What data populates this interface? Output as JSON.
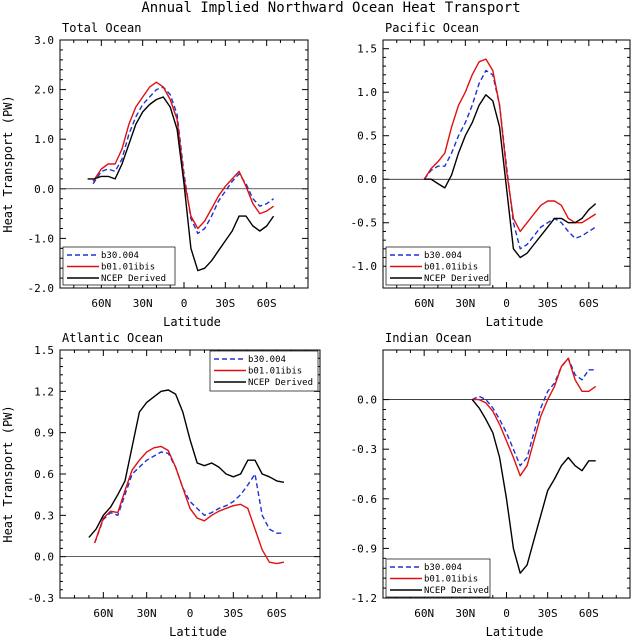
{
  "figure_title": "Annual Implied Northward Ocean Heat Transport",
  "colors": {
    "b30.004": "#1a33d6",
    "b01.01ibis": "#e01010",
    "NCEP Derived": "#000000"
  },
  "chart_data": [
    {
      "type": "line",
      "title": "Total Ocean",
      "xlabel": "Latitude",
      "ylabel": "Heat Transport (PW)",
      "xlim": [
        90,
        -90
      ],
      "ylim": [
        -2.0,
        3.0
      ],
      "yticks": [
        "-2.0",
        "-1.0",
        "0.0",
        "1.0",
        "2.0",
        "3.0"
      ],
      "xticks": [
        "60N",
        "30N",
        "0",
        "30S",
        "60S"
      ],
      "grid": false,
      "legend_position": "bottom-left",
      "series": [
        {
          "name": "b30.004",
          "style": "dashed",
          "x": [
            66,
            60,
            55,
            50,
            45,
            40,
            35,
            30,
            25,
            20,
            15,
            10,
            5,
            0,
            -5,
            -10,
            -15,
            -20,
            -25,
            -30,
            -35,
            -40,
            -45,
            -50,
            -55,
            -60,
            -65
          ],
          "y": [
            0.1,
            0.35,
            0.4,
            0.35,
            0.6,
            1.1,
            1.45,
            1.7,
            1.85,
            2.0,
            2.05,
            1.9,
            1.5,
            0.3,
            -0.6,
            -0.9,
            -0.8,
            -0.55,
            -0.25,
            -0.05,
            0.15,
            0.3,
            0.1,
            -0.2,
            -0.35,
            -0.3,
            -0.2
          ]
        },
        {
          "name": "b01.01ibis",
          "style": "solid",
          "x": [
            66,
            60,
            55,
            50,
            45,
            40,
            35,
            30,
            25,
            20,
            15,
            10,
            5,
            0,
            -5,
            -10,
            -15,
            -20,
            -25,
            -30,
            -35,
            -40,
            -45,
            -50,
            -55,
            -60,
            -65
          ],
          "y": [
            0.15,
            0.4,
            0.5,
            0.5,
            0.8,
            1.3,
            1.65,
            1.85,
            2.05,
            2.15,
            2.05,
            1.8,
            1.4,
            0.2,
            -0.55,
            -0.8,
            -0.65,
            -0.4,
            -0.15,
            0.05,
            0.2,
            0.35,
            0.05,
            -0.3,
            -0.5,
            -0.45,
            -0.35
          ]
        },
        {
          "name": "NCEP Derived",
          "style": "solid",
          "x": [
            70,
            65,
            60,
            55,
            50,
            45,
            40,
            35,
            30,
            25,
            20,
            15,
            10,
            5,
            0,
            -5,
            -10,
            -15,
            -20,
            -25,
            -30,
            -35,
            -40,
            -45,
            -50,
            -55,
            -60,
            -65
          ],
          "y": [
            0.2,
            0.2,
            0.25,
            0.25,
            0.2,
            0.5,
            0.9,
            1.3,
            1.55,
            1.7,
            1.8,
            1.85,
            1.65,
            1.2,
            0.1,
            -1.2,
            -1.65,
            -1.6,
            -1.45,
            -1.25,
            -1.05,
            -0.85,
            -0.55,
            -0.55,
            -0.75,
            -0.85,
            -0.75,
            -0.55
          ]
        }
      ]
    },
    {
      "type": "line",
      "title": "Pacific Ocean",
      "xlabel": "Latitude",
      "ylabel": "",
      "xlim": [
        90,
        -90
      ],
      "ylim": [
        -1.25,
        1.6
      ],
      "yticks": [
        "-1.0",
        "-0.5",
        "0.0",
        "0.5",
        "1.0",
        "1.5"
      ],
      "xticks": [
        "60N",
        "30N",
        "0",
        "30S",
        "60S"
      ],
      "grid": false,
      "legend_position": "bottom-left",
      "series": [
        {
          "name": "b30.004",
          "style": "dashed",
          "x": [
            60,
            55,
            50,
            45,
            40,
            35,
            30,
            25,
            20,
            15,
            10,
            5,
            0,
            -5,
            -10,
            -15,
            -20,
            -25,
            -30,
            -35,
            -40,
            -45,
            -50,
            -55,
            -60,
            -65
          ],
          "y": [
            0.0,
            0.1,
            0.15,
            0.15,
            0.3,
            0.5,
            0.65,
            0.85,
            1.1,
            1.25,
            1.2,
            0.85,
            0.15,
            -0.5,
            -0.8,
            -0.75,
            -0.65,
            -0.55,
            -0.5,
            -0.45,
            -0.5,
            -0.6,
            -0.68,
            -0.65,
            -0.6,
            -0.55
          ]
        },
        {
          "name": "b01.01ibis",
          "style": "solid",
          "x": [
            60,
            55,
            50,
            45,
            40,
            35,
            30,
            25,
            20,
            15,
            10,
            5,
            0,
            -5,
            -10,
            -15,
            -20,
            -25,
            -30,
            -35,
            -40,
            -45,
            -50,
            -55,
            -60,
            -65
          ],
          "y": [
            0.0,
            0.12,
            0.2,
            0.3,
            0.6,
            0.85,
            1.0,
            1.2,
            1.35,
            1.38,
            1.25,
            0.85,
            0.1,
            -0.45,
            -0.6,
            -0.5,
            -0.4,
            -0.3,
            -0.25,
            -0.25,
            -0.3,
            -0.45,
            -0.5,
            -0.5,
            -0.45,
            -0.4
          ]
        },
        {
          "name": "NCEP Derived",
          "style": "solid",
          "x": [
            60,
            55,
            50,
            45,
            40,
            35,
            30,
            25,
            20,
            15,
            10,
            5,
            0,
            -5,
            -10,
            -15,
            -20,
            -25,
            -30,
            -35,
            -40,
            -45,
            -50,
            -55,
            -60,
            -65
          ],
          "y": [
            0.0,
            0.0,
            -0.05,
            -0.1,
            0.05,
            0.3,
            0.5,
            0.65,
            0.85,
            0.97,
            0.9,
            0.6,
            -0.1,
            -0.8,
            -0.9,
            -0.85,
            -0.75,
            -0.65,
            -0.55,
            -0.45,
            -0.45,
            -0.5,
            -0.5,
            -0.45,
            -0.35,
            -0.28
          ]
        }
      ]
    },
    {
      "type": "line",
      "title": "Atlantic Ocean",
      "xlabel": "Latitude",
      "ylabel": "Heat Transport (PW)",
      "xlim": [
        90,
        -90
      ],
      "ylim": [
        -0.3,
        1.5
      ],
      "yticks": [
        "-0.3",
        "0.0",
        "0.3",
        "0.6",
        "0.9",
        "1.2",
        "1.5"
      ],
      "xticks": [
        "60N",
        "30N",
        "0",
        "30S",
        "60S"
      ],
      "grid": false,
      "legend_position": "top-right",
      "series": [
        {
          "name": "b30.004",
          "style": "dashed",
          "x": [
            66,
            60,
            55,
            50,
            45,
            40,
            35,
            30,
            25,
            20,
            15,
            10,
            5,
            0,
            -5,
            -10,
            -15,
            -20,
            -25,
            -30,
            -35,
            -40,
            -45,
            -50,
            -55,
            -60,
            -65
          ],
          "y": [
            0.1,
            0.27,
            0.32,
            0.3,
            0.45,
            0.6,
            0.65,
            0.7,
            0.73,
            0.76,
            0.75,
            0.65,
            0.5,
            0.4,
            0.35,
            0.3,
            0.32,
            0.35,
            0.37,
            0.4,
            0.45,
            0.52,
            0.6,
            0.3,
            0.2,
            0.17,
            0.17
          ]
        },
        {
          "name": "b01.01ibis",
          "style": "solid",
          "x": [
            66,
            60,
            55,
            50,
            45,
            40,
            35,
            30,
            25,
            20,
            15,
            10,
            5,
            0,
            -5,
            -10,
            -15,
            -20,
            -25,
            -30,
            -35,
            -40,
            -45,
            -50,
            -55,
            -60,
            -65
          ],
          "y": [
            0.1,
            0.28,
            0.33,
            0.32,
            0.48,
            0.63,
            0.7,
            0.76,
            0.79,
            0.8,
            0.77,
            0.65,
            0.5,
            0.35,
            0.28,
            0.26,
            0.3,
            0.33,
            0.35,
            0.37,
            0.38,
            0.35,
            0.2,
            0.05,
            -0.04,
            -0.05,
            -0.04
          ]
        },
        {
          "name": "NCEP Derived",
          "style": "solid",
          "x": [
            70,
            65,
            60,
            55,
            50,
            45,
            40,
            35,
            30,
            25,
            20,
            15,
            10,
            5,
            0,
            -5,
            -10,
            -15,
            -20,
            -25,
            -30,
            -35,
            -40,
            -45,
            -50,
            -55,
            -60,
            -65
          ],
          "y": [
            0.14,
            0.2,
            0.3,
            0.36,
            0.45,
            0.55,
            0.8,
            1.05,
            1.12,
            1.16,
            1.2,
            1.21,
            1.18,
            1.05,
            0.85,
            0.68,
            0.66,
            0.68,
            0.65,
            0.6,
            0.58,
            0.6,
            0.7,
            0.7,
            0.6,
            0.58,
            0.55,
            0.54
          ]
        }
      ]
    },
    {
      "type": "line",
      "title": "Indian Ocean",
      "xlabel": "Latitude",
      "ylabel": "",
      "xlim": [
        90,
        -90
      ],
      "ylim": [
        -1.2,
        0.3
      ],
      "yticks": [
        "-1.2",
        "-0.9",
        "-0.6",
        "-0.3",
        "0.0"
      ],
      "xticks": [
        "60N",
        "30N",
        "0",
        "30S",
        "60S"
      ],
      "grid": false,
      "legend_position": "bottom-left",
      "series": [
        {
          "name": "b30.004",
          "style": "dashed",
          "x": [
            25,
            20,
            15,
            10,
            5,
            0,
            -5,
            -10,
            -15,
            -20,
            -25,
            -30,
            -35,
            -40,
            -45,
            -50,
            -55,
            -60,
            -65
          ],
          "y": [
            0.0,
            0.02,
            0.0,
            -0.05,
            -0.12,
            -0.2,
            -0.3,
            -0.4,
            -0.35,
            -0.2,
            -0.05,
            0.05,
            0.1,
            0.2,
            0.25,
            0.15,
            0.12,
            0.18,
            0.18
          ]
        },
        {
          "name": "b01.01ibis",
          "style": "solid",
          "x": [
            25,
            20,
            15,
            10,
            5,
            0,
            -5,
            -10,
            -15,
            -20,
            -25,
            -30,
            -35,
            -40,
            -45,
            -50,
            -55,
            -60,
            -65
          ],
          "y": [
            0.0,
            0.0,
            -0.02,
            -0.07,
            -0.15,
            -0.25,
            -0.35,
            -0.46,
            -0.4,
            -0.25,
            -0.1,
            0.0,
            0.08,
            0.2,
            0.25,
            0.12,
            0.05,
            0.05,
            0.08
          ]
        },
        {
          "name": "NCEP Derived",
          "style": "solid",
          "x": [
            25,
            20,
            15,
            10,
            5,
            0,
            -5,
            -10,
            -15,
            -20,
            -25,
            -30,
            -35,
            -40,
            -45,
            -50,
            -55,
            -60,
            -65
          ],
          "y": [
            0.0,
            -0.05,
            -0.12,
            -0.2,
            -0.35,
            -0.6,
            -0.9,
            -1.05,
            -1.0,
            -0.85,
            -0.7,
            -0.55,
            -0.48,
            -0.4,
            -0.35,
            -0.4,
            -0.43,
            -0.37,
            -0.37
          ]
        }
      ]
    }
  ]
}
